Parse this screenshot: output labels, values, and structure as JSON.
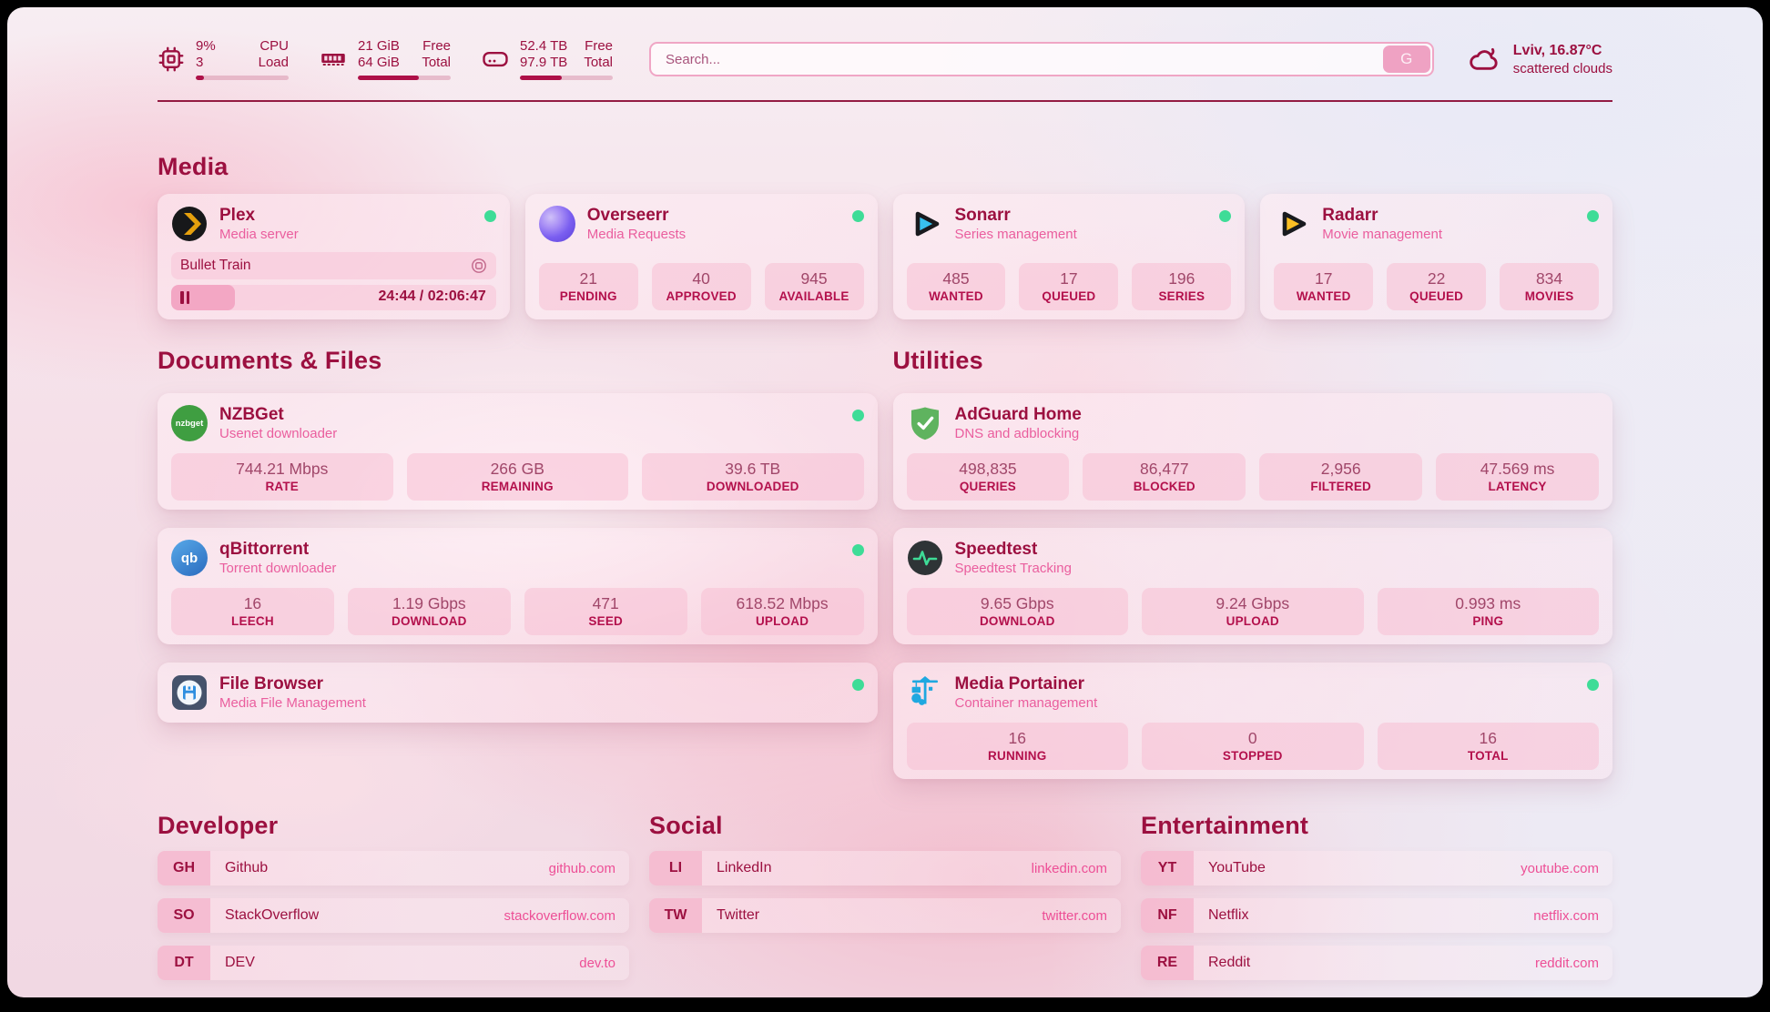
{
  "theme": {
    "accent": "#9c1040",
    "pink": "#ed4f96",
    "green": "#3edc97"
  },
  "topbar": {
    "cpu": {
      "value": "9%",
      "sub": "3",
      "label_top": "CPU",
      "label_bottom": "Load",
      "percent": 9
    },
    "ram": {
      "value": "21 GiB",
      "sub": "64 GiB",
      "label_top": "Free",
      "label_bottom": "Total",
      "percent": 66
    },
    "disk": {
      "value": "52.4 TB",
      "sub": "97.9 TB",
      "label_top": "Free",
      "label_bottom": "Total",
      "percent": 45
    },
    "search": {
      "placeholder": "Search...",
      "button_label": "G"
    },
    "weather": {
      "location": "Lviv, 16.87°C",
      "condition": "scattered clouds"
    }
  },
  "sections": {
    "media": "Media",
    "documents": "Documents & Files",
    "utilities": "Utilities",
    "developer": "Developer",
    "social": "Social",
    "entertainment": "Entertainment"
  },
  "apps": {
    "plex": {
      "name": "Plex",
      "desc": "Media server",
      "now_playing": "Bullet Train",
      "time": "24:44 / 02:06:47",
      "progress_percent": 19.5
    },
    "overseerr": {
      "name": "Overseerr",
      "desc": "Media Requests",
      "stats": [
        {
          "value": "21",
          "label": "PENDING"
        },
        {
          "value": "40",
          "label": "APPROVED"
        },
        {
          "value": "945",
          "label": "AVAILABLE"
        }
      ]
    },
    "sonarr": {
      "name": "Sonarr",
      "desc": "Series management",
      "stats": [
        {
          "value": "485",
          "label": "WANTED"
        },
        {
          "value": "17",
          "label": "QUEUED"
        },
        {
          "value": "196",
          "label": "SERIES"
        }
      ]
    },
    "radarr": {
      "name": "Radarr",
      "desc": "Movie management",
      "stats": [
        {
          "value": "17",
          "label": "WANTED"
        },
        {
          "value": "22",
          "label": "QUEUED"
        },
        {
          "value": "834",
          "label": "MOVIES"
        }
      ]
    },
    "nzbget": {
      "name": "NZBGet",
      "desc": "Usenet downloader",
      "icon_text": "nzbget",
      "stats": [
        {
          "value": "744.21 Mbps",
          "label": "RATE"
        },
        {
          "value": "266 GB",
          "label": "REMAINING"
        },
        {
          "value": "39.6 TB",
          "label": "DOWNLOADED"
        }
      ]
    },
    "qbittorrent": {
      "name": "qBittorrent",
      "desc": "Torrent downloader",
      "icon_text": "qb",
      "stats": [
        {
          "value": "16",
          "label": "LEECH"
        },
        {
          "value": "1.19 Gbps",
          "label": "DOWNLOAD"
        },
        {
          "value": "471",
          "label": "SEED"
        },
        {
          "value": "618.52 Mbps",
          "label": "UPLOAD"
        }
      ]
    },
    "filebrowser": {
      "name": "File Browser",
      "desc": "Media File Management"
    },
    "adguard": {
      "name": "AdGuard Home",
      "desc": "DNS and adblocking",
      "stats": [
        {
          "value": "498,835",
          "label": "QUERIES"
        },
        {
          "value": "86,477",
          "label": "BLOCKED"
        },
        {
          "value": "2,956",
          "label": "FILTERED"
        },
        {
          "value": "47.569 ms",
          "label": "LATENCY"
        }
      ]
    },
    "speedtest": {
      "name": "Speedtest",
      "desc": "Speedtest Tracking",
      "stats": [
        {
          "value": "9.65 Gbps",
          "label": "DOWNLOAD"
        },
        {
          "value": "9.24 Gbps",
          "label": "UPLOAD"
        },
        {
          "value": "0.993 ms",
          "label": "PING"
        }
      ]
    },
    "portainer": {
      "name": "Media Portainer",
      "desc": "Container management",
      "stats": [
        {
          "value": "16",
          "label": "RUNNING"
        },
        {
          "value": "0",
          "label": "STOPPED"
        },
        {
          "value": "16",
          "label": "TOTAL"
        }
      ]
    }
  },
  "bookmarks": {
    "developer": [
      {
        "abbr": "GH",
        "name": "Github",
        "domain": "github.com"
      },
      {
        "abbr": "SO",
        "name": "StackOverflow",
        "domain": "stackoverflow.com"
      },
      {
        "abbr": "DT",
        "name": "DEV",
        "domain": "dev.to"
      }
    ],
    "social": [
      {
        "abbr": "LI",
        "name": "LinkedIn",
        "domain": "linkedin.com"
      },
      {
        "abbr": "TW",
        "name": "Twitter",
        "domain": "twitter.com"
      }
    ],
    "entertainment": [
      {
        "abbr": "YT",
        "name": "YouTube",
        "domain": "youtube.com"
      },
      {
        "abbr": "NF",
        "name": "Netflix",
        "domain": "netflix.com"
      },
      {
        "abbr": "RE",
        "name": "Reddit",
        "domain": "reddit.com"
      }
    ]
  }
}
